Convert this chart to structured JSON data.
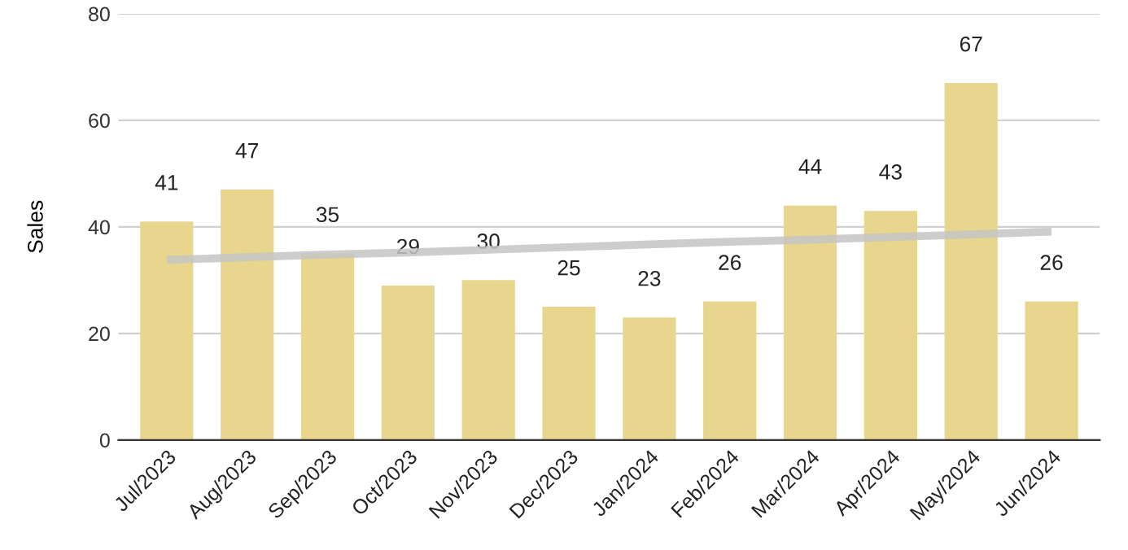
{
  "chart_data": {
    "type": "bar",
    "ylabel": "Sales",
    "categories": [
      "Jul/2023",
      "Aug/2023",
      "Sep/2023",
      "Oct/2023",
      "Nov/2023",
      "Dec/2023",
      "Jan/2024",
      "Feb/2024",
      "Mar/2024",
      "Apr/2024",
      "May/2024",
      "Jun/2024"
    ],
    "series": [
      {
        "color": "#e8d68e",
        "values": [
          41,
          47,
          35,
          29,
          30,
          25,
          23,
          26,
          44,
          43,
          67,
          26
        ],
        "value_labels": [
          "41",
          "47",
          "35",
          "29",
          "30",
          "25",
          "23",
          "26",
          "44",
          "43",
          "67",
          "26"
        ]
      },
      {
        "type": "line",
        "color": "#c4c4c4",
        "values": [
          33.8,
          34.3,
          34.8,
          35.2,
          35.7,
          36.2,
          36.7,
          37.2,
          37.6,
          38.1,
          38.6,
          39.1
        ]
      }
    ],
    "ylim": [
      0,
      80
    ],
    "yticks": [
      0,
      20,
      40,
      60,
      80
    ],
    "grid": "y",
    "legend": false
  }
}
